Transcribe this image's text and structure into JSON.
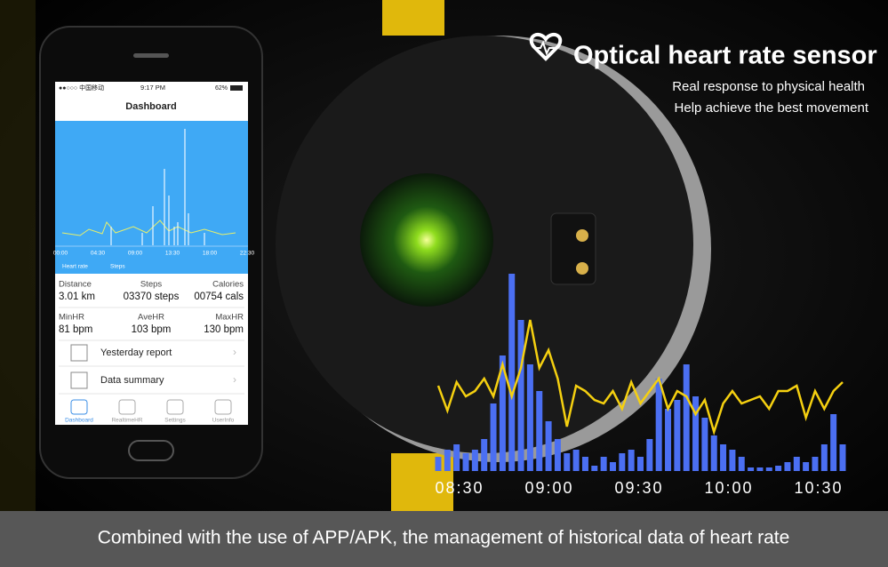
{
  "header": {
    "title": "Optical heart rate sensor",
    "lines": [
      "Real response to physical health",
      "Help achieve the best movement"
    ]
  },
  "phone": {
    "status": {
      "carrier": "●●○○○ 中国移动",
      "time": "9:17 PM",
      "battery": "62%"
    },
    "title": "Dashboard",
    "chart_ticks": [
      "00:00",
      "04:30",
      "09:00",
      "13:30",
      "18:00",
      "22:30"
    ],
    "legend": [
      "Heart rate",
      "Steps"
    ],
    "stats": [
      [
        {
          "label": "Distance",
          "value": "3.01 km"
        },
        {
          "label": "Steps",
          "value": "03370 steps"
        },
        {
          "label": "Calories",
          "value": "00754 cals"
        }
      ],
      [
        {
          "label": "MinHR",
          "value": "81 bpm"
        },
        {
          "label": "AveHR",
          "value": "103 bpm"
        },
        {
          "label": "MaxHR",
          "value": "130 bpm"
        }
      ]
    ],
    "menu": [
      "Yesterday report",
      "Data summary"
    ],
    "tabs": [
      "Dashboard",
      "RealtimeHR",
      "Settings",
      "UserInfo"
    ]
  },
  "chart_data": {
    "type": "bar",
    "ylim": [
      0,
      120
    ],
    "xticks": [
      "08:30",
      "09:00",
      "09:30",
      "10:00",
      "10:30"
    ],
    "series": [
      {
        "color": "#4b6ff2",
        "values": [
          8,
          12,
          15,
          10,
          12,
          18,
          38,
          65,
          111,
          85,
          60,
          45,
          28,
          18,
          10,
          12,
          8,
          3,
          8,
          5,
          10,
          12,
          8,
          18,
          52,
          35,
          40,
          60,
          42,
          30,
          20,
          15,
          12,
          8,
          2,
          2,
          2,
          3,
          5,
          8,
          5,
          8,
          15,
          32,
          15
        ]
      },
      {
        "color": "#f5d010",
        "values": [
          48,
          34,
          50,
          42,
          45,
          52,
          42,
          60,
          42,
          58,
          85,
          58,
          68,
          52,
          25,
          48,
          45,
          40,
          38,
          45,
          35,
          50,
          38,
          45,
          52,
          35,
          45,
          42,
          32,
          40,
          22,
          38,
          45,
          38,
          40,
          42,
          35,
          45,
          45,
          48,
          30,
          45,
          35,
          45,
          50
        ]
      }
    ]
  },
  "footer": {
    "caption": "Combined with the use of APP/APK, the management of historical data of heart rate"
  }
}
